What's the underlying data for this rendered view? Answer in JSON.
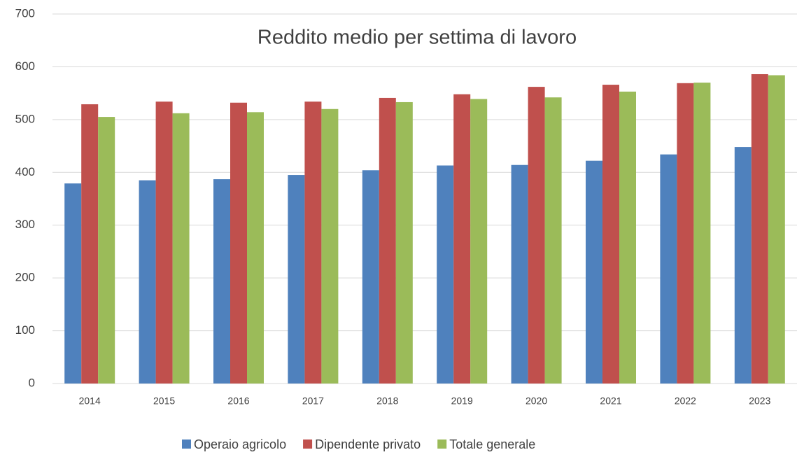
{
  "chart_data": {
    "type": "bar",
    "title": "Reddito medio per settima di lavoro",
    "categories": [
      "2014",
      "2015",
      "2016",
      "2017",
      "2018",
      "2019",
      "2020",
      "2021",
      "2022",
      "2023"
    ],
    "series": [
      {
        "name": "Operaio agricolo",
        "color": "#4f81bd",
        "values": [
          379,
          385,
          387,
          395,
          404,
          413,
          414,
          422,
          434,
          448
        ]
      },
      {
        "name": "Dipendente privato",
        "color": "#c0504d",
        "values": [
          529,
          534,
          532,
          534,
          541,
          548,
          562,
          566,
          569,
          586
        ]
      },
      {
        "name": "Totale generale",
        "color": "#9bbb59",
        "values": [
          505,
          512,
          514,
          520,
          533,
          539,
          542,
          553,
          570,
          584
        ]
      }
    ],
    "ylim": [
      0,
      700
    ],
    "yticks": [
      0,
      100,
      200,
      300,
      400,
      500,
      600,
      700
    ],
    "grid": true,
    "legend": "bottom"
  }
}
